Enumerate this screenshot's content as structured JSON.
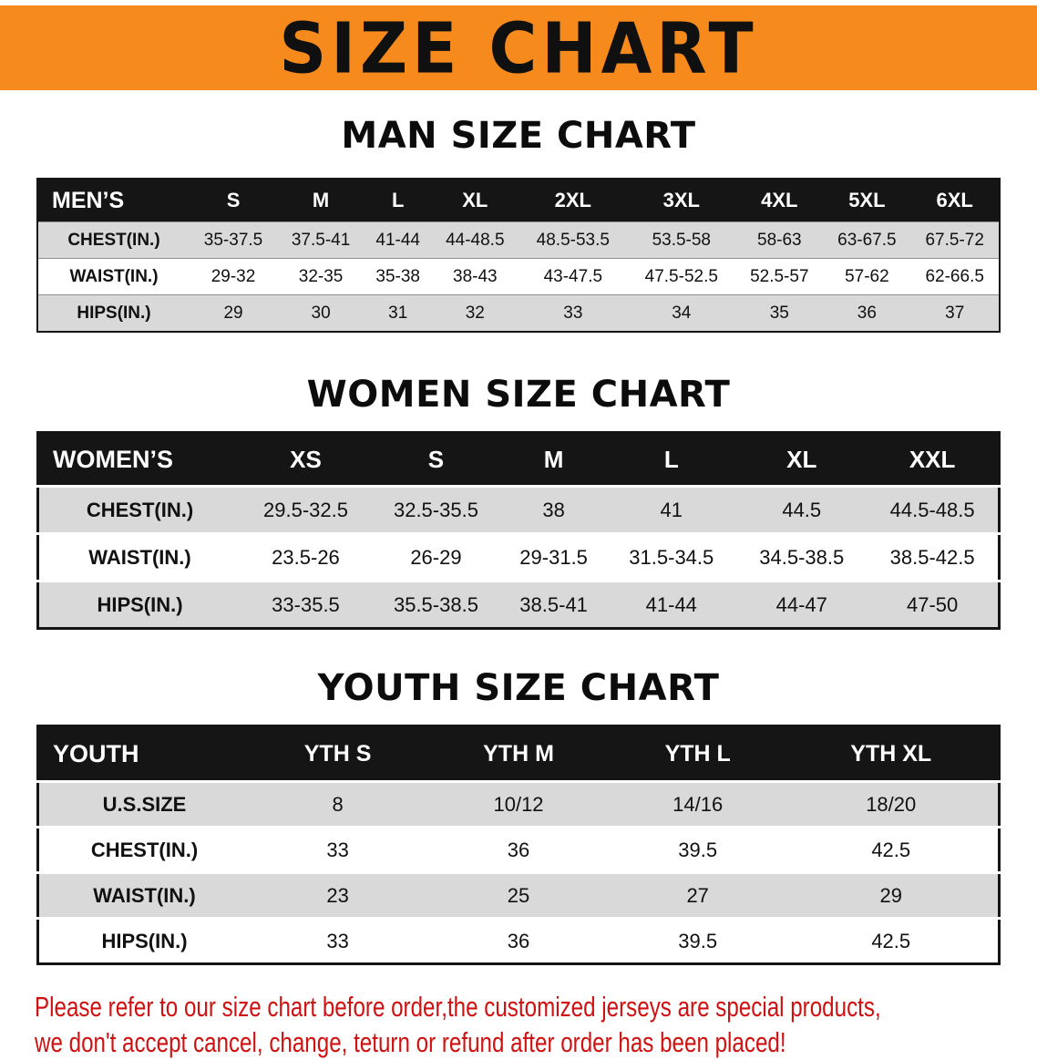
{
  "banner": {
    "title": "SIZE CHART",
    "bg_color": "#f68a1c",
    "text_color": "#101010"
  },
  "chart_data": [
    {
      "type": "table",
      "title": "MAN SIZE CHART",
      "header": [
        "MEN’S",
        "S",
        "M",
        "L",
        "XL",
        "2XL",
        "3XL",
        "4XL",
        "5XL",
        "6XL"
      ],
      "rows": [
        [
          "CHEST(IN.)",
          "35-37.5",
          "37.5-41",
          "41-44",
          "44-48.5",
          "48.5-53.5",
          "53.5-58",
          "58-63",
          "63-67.5",
          "67.5-72"
        ],
        [
          "WAIST(IN.)",
          "29-32",
          "32-35",
          "35-38",
          "38-43",
          "43-47.5",
          "47.5-52.5",
          "52.5-57",
          "57-62",
          "62-66.5"
        ],
        [
          "HIPS(IN.)",
          "29",
          "30",
          "31",
          "32",
          "33",
          "34",
          "35",
          "36",
          "37"
        ]
      ],
      "header_bg": "#151515",
      "row_stripe_colors": [
        "#d9d9d9",
        "#ffffff"
      ]
    },
    {
      "type": "table",
      "title": "WOMEN SIZE CHART",
      "header": [
        "WOMEN’S",
        "XS",
        "S",
        "M",
        "L",
        "XL",
        "XXL"
      ],
      "rows": [
        [
          "CHEST(IN.)",
          "29.5-32.5",
          "32.5-35.5",
          "38",
          "41",
          "44.5",
          "44.5-48.5"
        ],
        [
          "WAIST(IN.)",
          "23.5-26",
          "26-29",
          "29-31.5",
          "31.5-34.5",
          "34.5-38.5",
          "38.5-42.5"
        ],
        [
          "HIPS(IN.)",
          "33-35.5",
          "35.5-38.5",
          "38.5-41",
          "41-44",
          "44-47",
          "47-50"
        ]
      ],
      "header_bg": "#151515",
      "row_stripe_colors": [
        "#d9d9d9",
        "#ffffff"
      ]
    },
    {
      "type": "table",
      "title": "YOUTH SIZE CHART",
      "header": [
        "YOUTH",
        "YTH S",
        "YTH M",
        "YTH L",
        "YTH XL"
      ],
      "rows": [
        [
          "U.S.SIZE",
          "8",
          "10/12",
          "14/16",
          "18/20"
        ],
        [
          "CHEST(IN.)",
          "33",
          "36",
          "39.5",
          "42.5"
        ],
        [
          "WAIST(IN.)",
          "23",
          "25",
          "27",
          "29"
        ],
        [
          "HIPS(IN.)",
          "33",
          "36",
          "39.5",
          "42.5"
        ]
      ],
      "header_bg": "#151515",
      "row_stripe_colors": [
        "#d9d9d9",
        "#ffffff"
      ]
    }
  ],
  "footer_note": {
    "lines": [
      "Please refer to our size chart before order,the customized jerseys are special products,",
      "we don't accept cancel, change, teturn or refund after order has been placed!"
    ],
    "color": "#d01111"
  }
}
